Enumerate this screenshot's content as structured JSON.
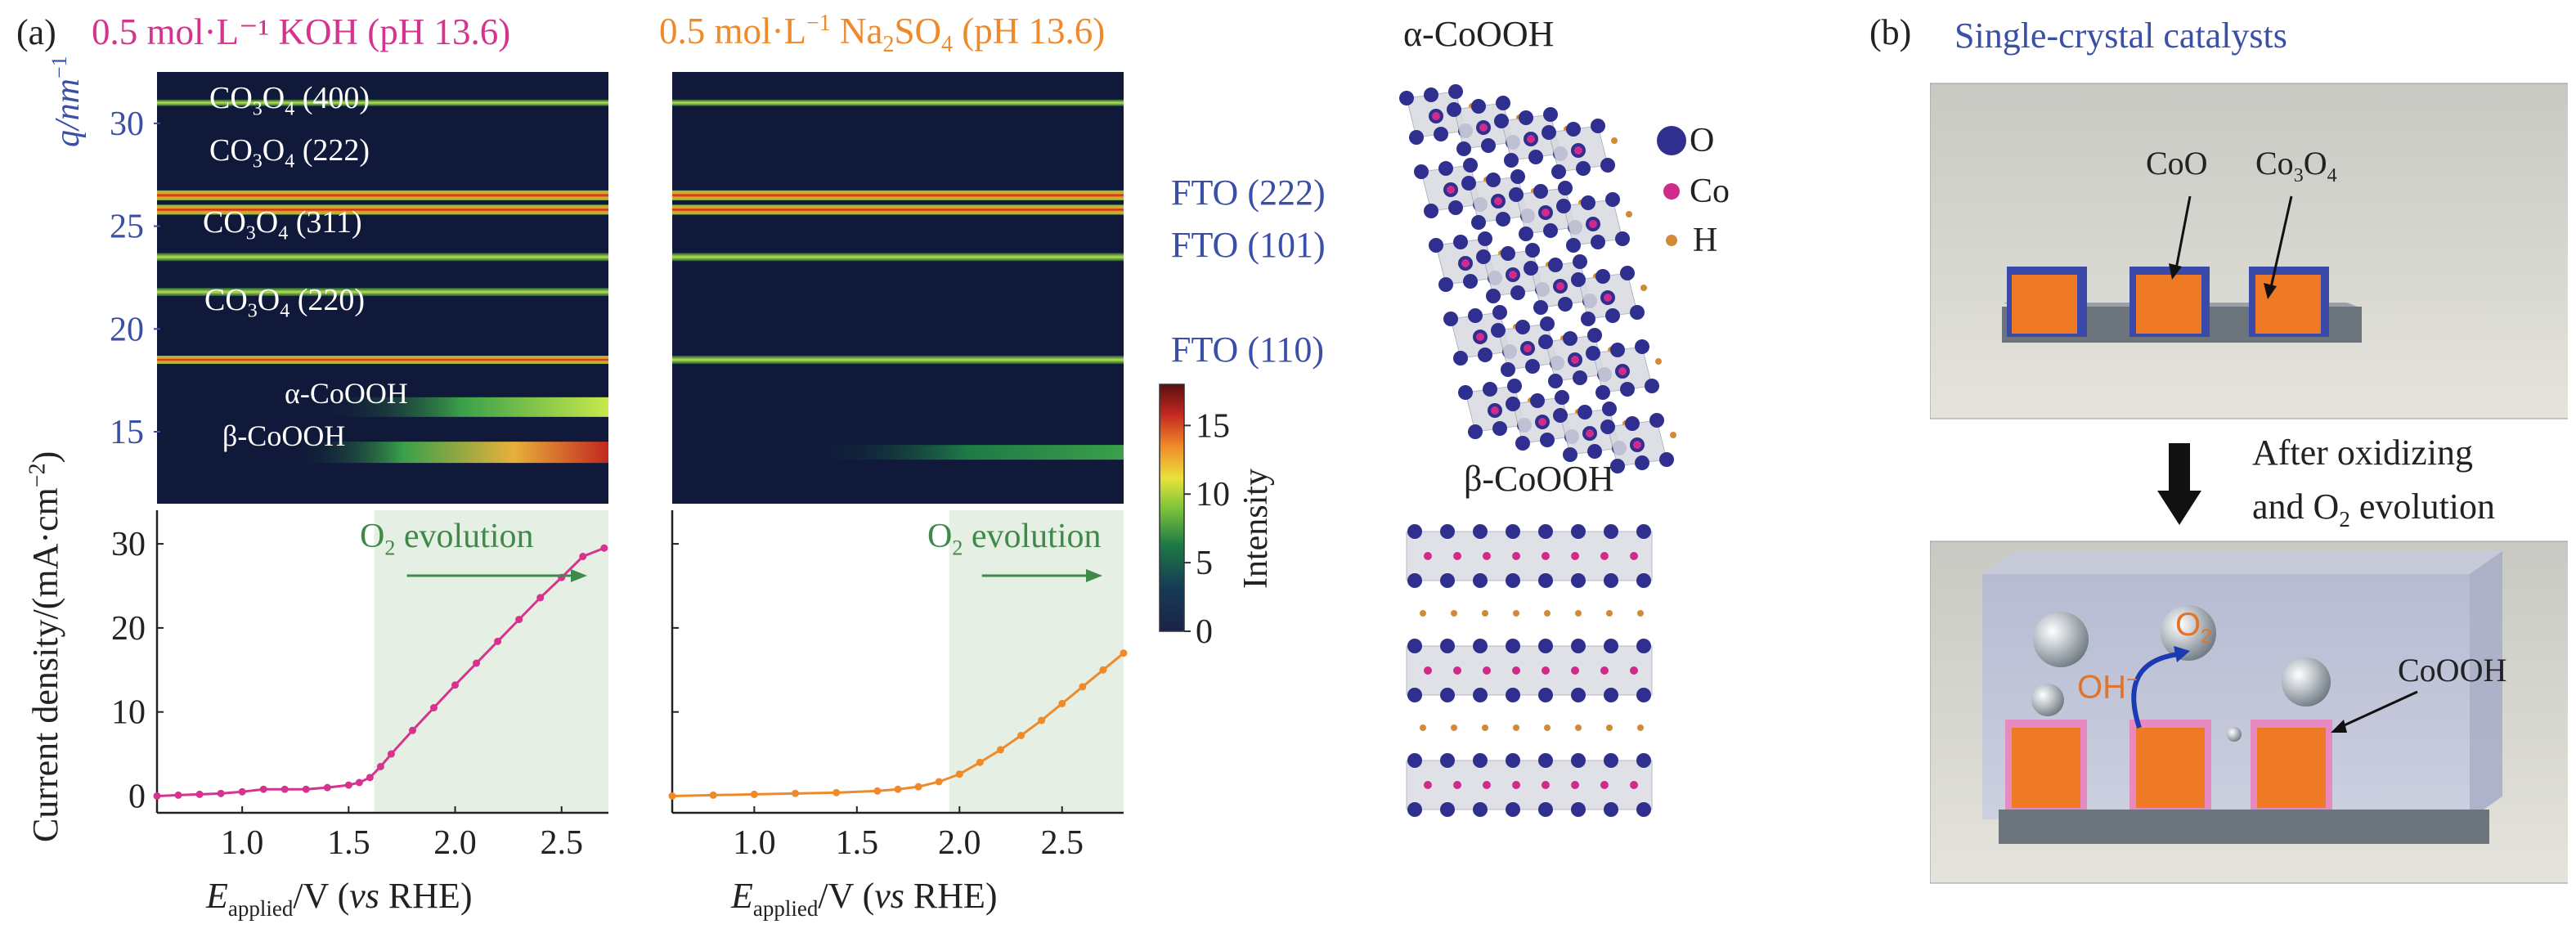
{
  "panel_a": {
    "label": "(a)",
    "koh_title": "0.5 mol·L⁻¹ KOH (pH 13.6)",
    "na_title_pre": "0.5 mol·L",
    "na_title_sup": "−1",
    "na_title_mid": " Na",
    "na_title_sub": "2",
    "na_title_post": "SO",
    "na_title_sub2": "4",
    "na_title_end": " (pH 13.6)",
    "q_axis_label": "q/nm",
    "q_axis_sup": "−1",
    "current_axis_label": "Current density/(mA·cm",
    "current_axis_sup": "−2",
    "current_axis_end": ")",
    "x_axis_label_E": "E",
    "x_axis_label_sub": "applied",
    "x_axis_label_rest": "/V (",
    "x_axis_label_vs": "vs",
    "x_axis_label_end": " RHE)",
    "o2_evolution_O": "O",
    "o2_evolution_sub": "2",
    "o2_evolution_rest": " evolution",
    "colorbar_label": "Intensity",
    "colorbar_ticks": [
      "0",
      "5",
      "10",
      "15"
    ],
    "koh_peaks": [
      {
        "pre": "CO",
        "sub": "3",
        "mid": "O",
        "sub2": "4",
        "post": " (400)"
      },
      {
        "pre": "CO",
        "sub": "3",
        "mid": "O",
        "sub2": "4",
        "post": " (222)"
      },
      {
        "pre": "CO",
        "sub": "3",
        "mid": "O",
        "sub2": "4",
        "post": " (311)"
      },
      {
        "pre": "CO",
        "sub": "3",
        "mid": "O",
        "sub2": "4",
        "post": " (220)"
      }
    ],
    "phase_labels": [
      "α-CoOOH",
      "β-CoOOH"
    ],
    "fto_labels": [
      "FTO (222)",
      "FTO (101)",
      "FTO (110)"
    ],
    "alpha_structure_title": "α-CoOOH",
    "beta_structure_title": "β-CoOOH",
    "legend": [
      "O",
      "Co",
      "H"
    ]
  },
  "panel_b": {
    "label": "(b)",
    "title": "Single-crystal catalysts",
    "coo": "CoO",
    "co3o4_pre": "Co",
    "co3o4_sub": "3",
    "co3o4_mid": "O",
    "co3o4_sub2": "4",
    "after_line1": "After oxidizing",
    "after_line2_pre": "and O",
    "after_line2_sub": "2",
    "after_line2_post": " evolution",
    "cooh": "CoOOH",
    "oh": "OH",
    "oh_sup": "−",
    "o2": "O",
    "o2_sub": "2"
  },
  "colors": {
    "koh": "#d6338f",
    "na2so4": "#ef8a2a",
    "blue_label": "#3a4fa6",
    "green": "#3f8a4a",
    "shade": "#e6efe3"
  },
  "chart_data": [
    {
      "type": "heatmap",
      "title": "0.5 mol·L⁻¹ KOH (pH 13.6)",
      "ylabel": "q/nm⁻¹",
      "ylim": [
        11.5,
        32.5
      ],
      "yticks": [
        15,
        20,
        25,
        30
      ],
      "colorbar": {
        "label": "Intensity",
        "range": [
          0,
          18
        ],
        "ticks": [
          0,
          5,
          10,
          15
        ]
      },
      "bands_q": [
        31.0,
        26.5,
        25.8,
        23.5,
        21.8,
        18.5,
        16.2,
        14.0
      ]
    },
    {
      "type": "heatmap",
      "title": "0.5 mol·L⁻¹ Na₂SO₄ (pH 13.6)",
      "ylim": [
        11.5,
        32.5
      ],
      "bands_q": [
        31.0,
        26.5,
        25.8,
        23.5,
        18.5,
        14.0
      ]
    },
    {
      "type": "line",
      "series_color": "#d6338f",
      "xlabel": "E_applied/V (vs RHE)",
      "ylabel": "Current density/(mA·cm⁻²)",
      "xlim": [
        0.6,
        2.72
      ],
      "ylim": [
        -2,
        34
      ],
      "xticks": [
        1.0,
        1.5,
        2.0,
        2.5
      ],
      "yticks": [
        0,
        10,
        20,
        30
      ],
      "shade_start": 1.62,
      "x": [
        0.6,
        0.7,
        0.8,
        0.9,
        1.0,
        1.1,
        1.2,
        1.3,
        1.4,
        1.5,
        1.55,
        1.6,
        1.65,
        1.7,
        1.8,
        1.9,
        2.0,
        2.1,
        2.2,
        2.3,
        2.4,
        2.5,
        2.6,
        2.7
      ],
      "y": [
        0.0,
        0.1,
        0.2,
        0.3,
        0.5,
        0.8,
        0.8,
        0.8,
        1.0,
        1.3,
        1.6,
        2.2,
        3.5,
        5.0,
        7.8,
        10.5,
        13.2,
        15.8,
        18.4,
        21.0,
        23.6,
        26.0,
        28.5,
        29.5
      ]
    },
    {
      "type": "line",
      "series_color": "#ef8a2a",
      "xlabel": "E_applied/V (vs RHE)",
      "xlim": [
        0.6,
        2.8
      ],
      "ylim": [
        -2,
        34
      ],
      "xticks": [
        1.0,
        1.5,
        2.0,
        2.5
      ],
      "shade_start": 1.95,
      "x": [
        0.6,
        0.8,
        1.0,
        1.2,
        1.4,
        1.6,
        1.7,
        1.8,
        1.9,
        2.0,
        2.1,
        2.2,
        2.3,
        2.4,
        2.5,
        2.6,
        2.7,
        2.8
      ],
      "y": [
        0.0,
        0.1,
        0.2,
        0.3,
        0.4,
        0.6,
        0.8,
        1.1,
        1.7,
        2.6,
        4.0,
        5.5,
        7.2,
        9.0,
        11.0,
        13.0,
        15.0,
        17.0
      ]
    }
  ]
}
